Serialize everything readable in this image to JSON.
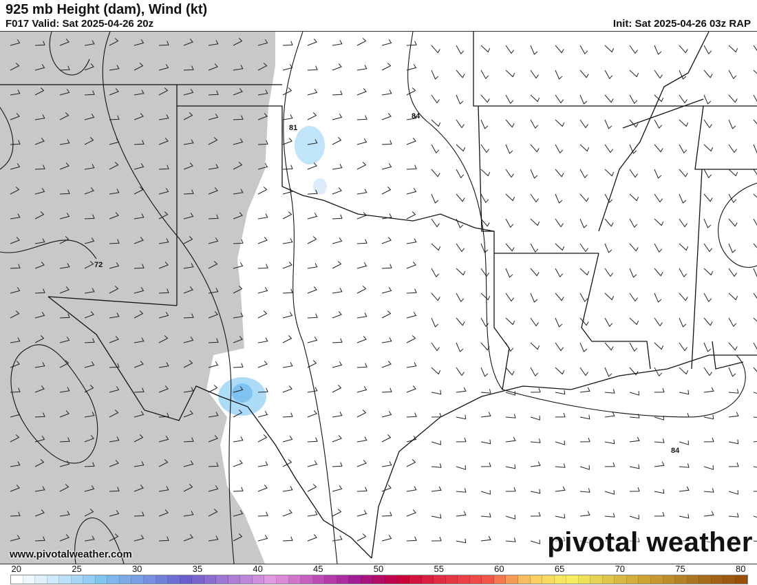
{
  "header": {
    "title": "925 mb Height (dam), Wind (kt)",
    "valid": "F017 Valid: Sat 2025-04-26 20z",
    "init": "Init: Sat 2025-04-26 03z RAP"
  },
  "map": {
    "contour_labels": [
      "81",
      "84",
      "72",
      "84"
    ],
    "terrain_mask_color": "#c8c8c8",
    "wind_shade_color": "#7fc3f0"
  },
  "footer": {
    "website": "www.pivotalweather.com",
    "logo": "pivotal weather"
  },
  "colorbar": {
    "ticks": [
      "20",
      "25",
      "30",
      "35",
      "40",
      "45",
      "50",
      "55",
      "60",
      "65",
      "70",
      "75",
      "80"
    ],
    "min": 20,
    "max": 80,
    "anchor_colors": [
      "#ffffff",
      "#c6e5fb",
      "#7fc3f0",
      "#7896e0",
      "#6a5ccc",
      "#a87ad4",
      "#e39ae0",
      "#c050b8",
      "#a01890",
      "#c80038",
      "#e43044",
      "#f05048",
      "#f8c860",
      "#f8f060",
      "#dcc048",
      "#c89830",
      "#a87020",
      "#985008"
    ]
  }
}
